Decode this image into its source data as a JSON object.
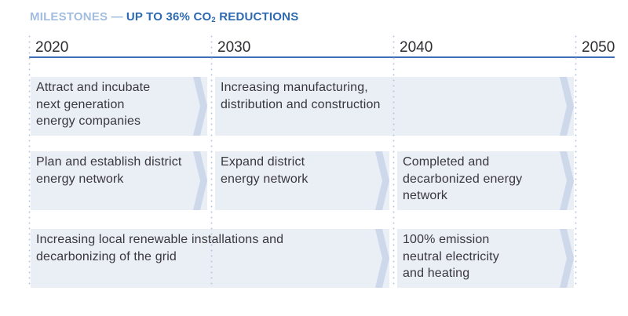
{
  "title": {
    "prefix": "MILESTONES —",
    "main": "UP TO 36% CO",
    "subscript": "2",
    "suffix": " REDUCTIONS",
    "prefix_color": "#a2bddf",
    "main_color": "#2d6ab2"
  },
  "timeline": {
    "years": [
      "2020",
      "2030",
      "2040",
      "2050"
    ],
    "axis_color": "#3d6eb7",
    "gridline_dot_color": "#b2c4de"
  },
  "milestones": {
    "box_bg": "#eaeef5",
    "chevron_color": "#cdd8ea",
    "text_color": "#38383d",
    "rows": [
      {
        "boxes": [
          {
            "col": 0,
            "span": 1,
            "lines": [
              "Attract and incubate",
              "next generation",
              "energy companies"
            ]
          },
          {
            "col": 1,
            "span": 2,
            "lines": [
              "Increasing manufacturing,",
              "distribution and construction"
            ]
          }
        ]
      },
      {
        "boxes": [
          {
            "col": 0,
            "span": 1,
            "lines": [
              "Plan and establish district",
              "energy network"
            ]
          },
          {
            "col": 1,
            "span": 1,
            "lines": [
              "Expand district",
              "energy network"
            ]
          },
          {
            "col": 2,
            "span": 1,
            "lines": [
              "Completed and",
              "decarbonized energy",
              "network"
            ]
          }
        ]
      },
      {
        "boxes": [
          {
            "col": 0,
            "span": 2,
            "lines": [
              "Increasing local renewable installations and",
              "decarbonizing of the grid"
            ]
          },
          {
            "col": 2,
            "span": 1,
            "lines": [
              "100% emission",
              "neutral electricity",
              "and heating"
            ]
          }
        ]
      }
    ]
  }
}
